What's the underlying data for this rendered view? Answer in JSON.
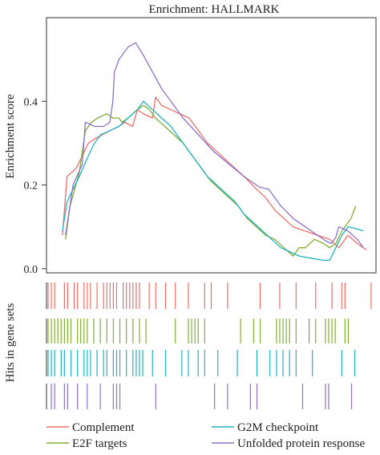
{
  "chart_data": {
    "type": "line",
    "title": "Enrichment: HALLMARK",
    "ylabel": "Enrichment score",
    "hits_label": "Hits in gene sets",
    "ylim": [
      -0.01,
      0.6
    ],
    "xlim": [
      0,
      1
    ],
    "yticks": [
      0.0,
      0.2,
      0.4
    ],
    "ytick_labels": [
      "0.0",
      "0.2",
      "0.4"
    ],
    "legend": {
      "placement": "bottom",
      "columns": 2
    },
    "series": [
      {
        "name": "Complement",
        "color": "#ee6f6a",
        "points": [
          [
            0.005,
            0.08
          ],
          [
            0.02,
            0.22
          ],
          [
            0.05,
            0.24
          ],
          [
            0.09,
            0.3
          ],
          [
            0.11,
            0.31
          ],
          [
            0.135,
            0.32
          ],
          [
            0.16,
            0.33
          ],
          [
            0.19,
            0.34
          ],
          [
            0.21,
            0.35
          ],
          [
            0.235,
            0.34
          ],
          [
            0.25,
            0.38
          ],
          [
            0.27,
            0.37
          ],
          [
            0.3,
            0.36
          ],
          [
            0.31,
            0.41
          ],
          [
            0.33,
            0.39
          ],
          [
            0.36,
            0.38
          ],
          [
            0.39,
            0.37
          ],
          [
            0.42,
            0.36
          ],
          [
            0.45,
            0.33
          ],
          [
            0.48,
            0.3
          ],
          [
            0.51,
            0.28
          ],
          [
            0.54,
            0.26
          ],
          [
            0.57,
            0.24
          ],
          [
            0.6,
            0.22
          ],
          [
            0.64,
            0.19
          ],
          [
            0.67,
            0.17
          ],
          [
            0.7,
            0.14
          ],
          [
            0.73,
            0.12
          ],
          [
            0.76,
            0.1
          ],
          [
            0.8,
            0.09
          ],
          [
            0.84,
            0.08
          ],
          [
            0.88,
            0.07
          ],
          [
            0.91,
            0.05
          ],
          [
            0.94,
            0.08
          ],
          [
            0.97,
            0.06
          ],
          [
            1.0,
            0.045
          ]
        ]
      },
      {
        "name": "E2F targets",
        "color": "#82ad34",
        "points": [
          [
            0.015,
            0.07
          ],
          [
            0.03,
            0.15
          ],
          [
            0.06,
            0.23
          ],
          [
            0.08,
            0.33
          ],
          [
            0.1,
            0.35
          ],
          [
            0.12,
            0.36
          ],
          [
            0.15,
            0.37
          ],
          [
            0.17,
            0.36
          ],
          [
            0.19,
            0.36
          ],
          [
            0.2,
            0.35
          ],
          [
            0.22,
            0.36
          ],
          [
            0.25,
            0.38
          ],
          [
            0.27,
            0.39
          ],
          [
            0.29,
            0.38
          ],
          [
            0.31,
            0.36
          ],
          [
            0.34,
            0.34
          ],
          [
            0.37,
            0.32
          ],
          [
            0.4,
            0.3
          ],
          [
            0.43,
            0.27
          ],
          [
            0.46,
            0.24
          ],
          [
            0.49,
            0.21
          ],
          [
            0.52,
            0.19
          ],
          [
            0.55,
            0.17
          ],
          [
            0.58,
            0.15
          ],
          [
            0.61,
            0.12
          ],
          [
            0.64,
            0.1
          ],
          [
            0.67,
            0.08
          ],
          [
            0.7,
            0.07
          ],
          [
            0.73,
            0.05
          ],
          [
            0.76,
            0.03
          ],
          [
            0.78,
            0.05
          ],
          [
            0.8,
            0.05
          ],
          [
            0.83,
            0.07
          ],
          [
            0.86,
            0.06
          ],
          [
            0.88,
            0.05
          ],
          [
            0.9,
            0.06
          ],
          [
            0.92,
            0.09
          ],
          [
            0.95,
            0.12
          ],
          [
            0.965,
            0.15
          ]
        ]
      },
      {
        "name": "G2M checkpoint",
        "color": "#1fb3c1",
        "points": [
          [
            0.005,
            0.09
          ],
          [
            0.02,
            0.16
          ],
          [
            0.04,
            0.19
          ],
          [
            0.06,
            0.22
          ],
          [
            0.09,
            0.27
          ],
          [
            0.11,
            0.3
          ],
          [
            0.13,
            0.32
          ],
          [
            0.16,
            0.33
          ],
          [
            0.19,
            0.34
          ],
          [
            0.22,
            0.36
          ],
          [
            0.25,
            0.38
          ],
          [
            0.27,
            0.4
          ],
          [
            0.3,
            0.38
          ],
          [
            0.33,
            0.36
          ],
          [
            0.36,
            0.34
          ],
          [
            0.39,
            0.31
          ],
          [
            0.42,
            0.28
          ],
          [
            0.45,
            0.25
          ],
          [
            0.48,
            0.22
          ],
          [
            0.51,
            0.2
          ],
          [
            0.54,
            0.18
          ],
          [
            0.57,
            0.16
          ],
          [
            0.6,
            0.13
          ],
          [
            0.63,
            0.11
          ],
          [
            0.66,
            0.09
          ],
          [
            0.69,
            0.07
          ],
          [
            0.72,
            0.05
          ],
          [
            0.75,
            0.04
          ],
          [
            0.78,
            0.03
          ],
          [
            0.82,
            0.025
          ],
          [
            0.86,
            0.02
          ],
          [
            0.88,
            0.02
          ],
          [
            0.9,
            0.05
          ],
          [
            0.92,
            0.08
          ],
          [
            0.94,
            0.1
          ],
          [
            0.97,
            0.095
          ],
          [
            0.99,
            0.09
          ]
        ]
      },
      {
        "name": "Unfolded protein response",
        "color": "#8b72c7",
        "points": [
          [
            0.015,
            0.08
          ],
          [
            0.04,
            0.2
          ],
          [
            0.07,
            0.25
          ],
          [
            0.08,
            0.35
          ],
          [
            0.11,
            0.34
          ],
          [
            0.14,
            0.34
          ],
          [
            0.16,
            0.35
          ],
          [
            0.17,
            0.4
          ],
          [
            0.175,
            0.47
          ],
          [
            0.19,
            0.5
          ],
          [
            0.22,
            0.53
          ],
          [
            0.245,
            0.54
          ],
          [
            0.27,
            0.51
          ],
          [
            0.3,
            0.47
          ],
          [
            0.33,
            0.43
          ],
          [
            0.36,
            0.4
          ],
          [
            0.4,
            0.36
          ],
          [
            0.45,
            0.32
          ],
          [
            0.5,
            0.28
          ],
          [
            0.55,
            0.25
          ],
          [
            0.6,
            0.22
          ],
          [
            0.65,
            0.195
          ],
          [
            0.68,
            0.19
          ],
          [
            0.72,
            0.15
          ],
          [
            0.76,
            0.12
          ],
          [
            0.8,
            0.1
          ],
          [
            0.84,
            0.08
          ],
          [
            0.87,
            0.065
          ],
          [
            0.885,
            0.06
          ],
          [
            0.9,
            0.075
          ],
          [
            0.91,
            0.1
          ],
          [
            0.94,
            0.09
          ],
          [
            0.97,
            0.07
          ],
          [
            0.99,
            0.05
          ]
        ]
      }
    ],
    "hits": [
      [
        0.0,
        0.01,
        0.02,
        0.05,
        0.06,
        0.08,
        0.09,
        0.11,
        0.12,
        0.13,
        0.15,
        0.17,
        0.18,
        0.19,
        0.2,
        0.21,
        0.23,
        0.24,
        0.25,
        0.26,
        0.27,
        0.28,
        0.31,
        0.33,
        0.36,
        0.39,
        0.43,
        0.48,
        0.5,
        0.55,
        0.65,
        0.71,
        0.76,
        0.82,
        0.87,
        0.9,
        0.91,
        0.99
      ],
      [
        0.0,
        0.01,
        0.02,
        0.03,
        0.04,
        0.05,
        0.06,
        0.07,
        0.09,
        0.1,
        0.11,
        0.12,
        0.14,
        0.16,
        0.18,
        0.2,
        0.22,
        0.24,
        0.26,
        0.28,
        0.3,
        0.39,
        0.43,
        0.44,
        0.45,
        0.46,
        0.48,
        0.59,
        0.63,
        0.65,
        0.7,
        0.71,
        0.72,
        0.73,
        0.74,
        0.76,
        0.8,
        0.82,
        0.85,
        0.86,
        0.87,
        0.88,
        0.91,
        0.92
      ],
      [
        0.0,
        0.01,
        0.02,
        0.04,
        0.05,
        0.07,
        0.09,
        0.11,
        0.12,
        0.13,
        0.15,
        0.17,
        0.18,
        0.2,
        0.21,
        0.22,
        0.24,
        0.26,
        0.27,
        0.28,
        0.29,
        0.32,
        0.36,
        0.41,
        0.43,
        0.46,
        0.48,
        0.52,
        0.58,
        0.64,
        0.68,
        0.7,
        0.72,
        0.74,
        0.76,
        0.81,
        0.9,
        0.94
      ],
      [
        0.01,
        0.02,
        0.05,
        0.06,
        0.09,
        0.12,
        0.16,
        0.2,
        0.21,
        0.22,
        0.33,
        0.51,
        0.55,
        0.62,
        0.64,
        0.78,
        0.85,
        0.86,
        0.93
      ]
    ]
  }
}
